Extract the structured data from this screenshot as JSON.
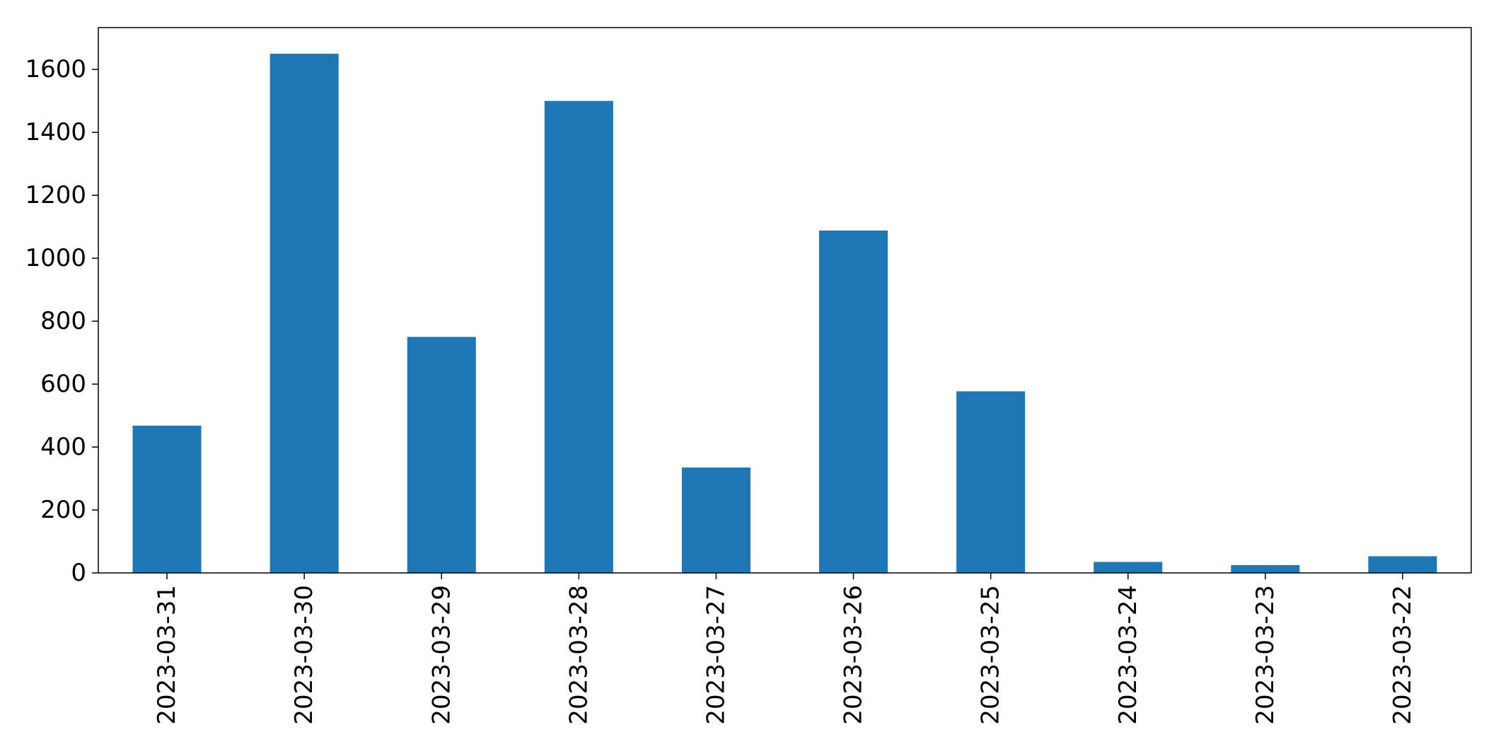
{
  "chart_data": {
    "type": "bar",
    "categories": [
      "2023-03-31",
      "2023-03-30",
      "2023-03-29",
      "2023-03-28",
      "2023-03-27",
      "2023-03-26",
      "2023-03-25",
      "2023-03-24",
      "2023-03-23",
      "2023-03-22"
    ],
    "values": [
      468,
      1650,
      750,
      1500,
      335,
      1088,
      577,
      35,
      25,
      53
    ],
    "title": "",
    "xlabel": "",
    "ylabel": "",
    "ylim": [
      0,
      1733
    ],
    "yticks": [
      0,
      200,
      400,
      600,
      800,
      1000,
      1200,
      1400,
      1600
    ],
    "bar_color": "#1f77b4",
    "grid": false,
    "legend": "none",
    "xtick_rotation": "vertical"
  }
}
